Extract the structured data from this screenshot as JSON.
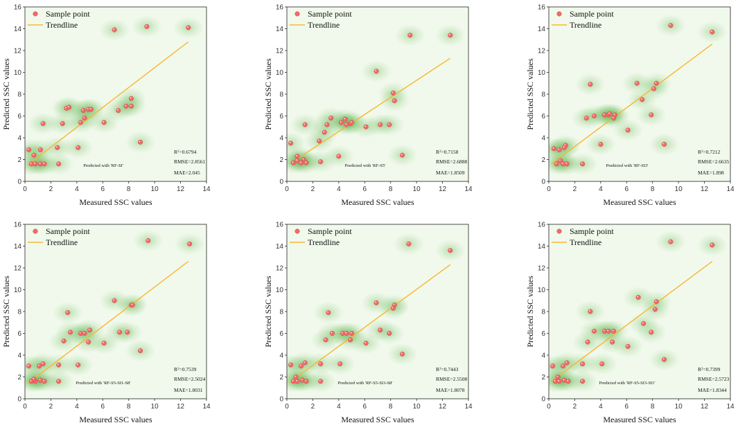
{
  "colors": {
    "point": "#f06a6a",
    "point_edge": "#d24a4a",
    "trend": "#f7b72e",
    "density": "#46a832"
  },
  "legend": {
    "point_label": "Sample point",
    "trend_label": "Trendline"
  },
  "chart_data": [
    {
      "type": "scatter",
      "xlabel": "Measured SSC values",
      "ylabel": "Predicted SSC values",
      "xlim": [
        0,
        14
      ],
      "ylim": [
        0,
        16
      ],
      "xticks": [
        "0",
        "2",
        "4",
        "6",
        "8",
        "10",
        "12",
        "14"
      ],
      "yticks": [
        "0",
        "2",
        "4",
        "6",
        "8",
        "10",
        "12",
        "14",
        "16"
      ],
      "stats": {
        "r2_label": "R",
        "r2_value": "=0.6794",
        "rmse": "RMSE=2.8561",
        "mae": "MAE=2.045"
      },
      "predicted_with": "Predicted with 'RF-SI'",
      "trend": [
        [
          0.2,
          1.5
        ],
        [
          12.6,
          12.8
        ]
      ],
      "points": [
        [
          0.3,
          2.9
        ],
        [
          0.5,
          1.6
        ],
        [
          0.8,
          1.6
        ],
        [
          1.2,
          2.9
        ],
        [
          1.2,
          1.6
        ],
        [
          1.4,
          5.3
        ],
        [
          1.5,
          1.6
        ],
        [
          0.7,
          2.4
        ],
        [
          2.5,
          3.1
        ],
        [
          2.6,
          1.6
        ],
        [
          2.9,
          5.3
        ],
        [
          3.2,
          6.7
        ],
        [
          3.4,
          6.8
        ],
        [
          4.1,
          3.1
        ],
        [
          4.3,
          5.4
        ],
        [
          4.5,
          6.5
        ],
        [
          4.6,
          5.8
        ],
        [
          4.9,
          6.6
        ],
        [
          5.1,
          6.6
        ],
        [
          6.1,
          5.4
        ],
        [
          7.2,
          6.5
        ],
        [
          7.8,
          6.9
        ],
        [
          8.2,
          6.9
        ],
        [
          8.2,
          7.6
        ],
        [
          8.9,
          3.6
        ],
        [
          6.9,
          13.9
        ],
        [
          9.4,
          14.2
        ],
        [
          12.6,
          14.1
        ]
      ]
    },
    {
      "type": "scatter",
      "xlabel": "Measured SSC values",
      "ylabel": "Predicted SSC values",
      "xlim": [
        0,
        14
      ],
      "ylim": [
        0,
        16
      ],
      "xticks": [
        "0",
        "2",
        "4",
        "6",
        "8",
        "10",
        "12",
        "14"
      ],
      "yticks": [
        "0",
        "2",
        "4",
        "6",
        "8",
        "10",
        "12",
        "14",
        "16"
      ],
      "stats": {
        "r2_label": "R",
        "r2_value": "=0.7158",
        "rmse": "RMSE=2.6888",
        "mae": "MAE=1.8509"
      },
      "predicted_with": "Predicted with 'RF-S5'",
      "trend": [
        [
          0.2,
          1.6
        ],
        [
          12.6,
          11.3
        ]
      ],
      "points": [
        [
          0.3,
          3.5
        ],
        [
          0.5,
          1.7
        ],
        [
          0.8,
          1.9
        ],
        [
          1.1,
          1.7
        ],
        [
          1.3,
          2.0
        ],
        [
          1.5,
          1.7
        ],
        [
          0.8,
          2.3
        ],
        [
          1.4,
          5.2
        ],
        [
          2.5,
          3.7
        ],
        [
          2.6,
          1.8
        ],
        [
          2.9,
          4.5
        ],
        [
          3.1,
          5.2
        ],
        [
          3.4,
          5.8
        ],
        [
          4.0,
          2.3
        ],
        [
          4.2,
          5.4
        ],
        [
          4.5,
          5.7
        ],
        [
          4.6,
          5.2
        ],
        [
          4.9,
          5.3
        ],
        [
          5.0,
          5.4
        ],
        [
          6.1,
          5.0
        ],
        [
          6.9,
          10.1
        ],
        [
          7.2,
          5.2
        ],
        [
          7.9,
          5.2
        ],
        [
          8.2,
          8.1
        ],
        [
          8.3,
          7.4
        ],
        [
          8.9,
          2.4
        ],
        [
          9.5,
          13.4
        ],
        [
          12.6,
          13.4
        ]
      ]
    },
    {
      "type": "scatter",
      "xlabel": "Measured SSC values",
      "ylabel": "Predicted SSC values",
      "xlim": [
        0,
        14
      ],
      "ylim": [
        0,
        16
      ],
      "xticks": [
        "0",
        "2",
        "4",
        "6",
        "8",
        "10",
        "12",
        "14"
      ],
      "yticks": [
        "0",
        "2",
        "4",
        "6",
        "8",
        "10",
        "12",
        "14",
        "16"
      ],
      "stats": {
        "r2_label": "R",
        "r2_value": "=0.7212",
        "rmse": "RMSE=2.6635",
        "mae": "MAE=1.898"
      },
      "predicted_with": "Predicted with 'RF-SI3'",
      "trend": [
        [
          0.2,
          1.6
        ],
        [
          12.6,
          12.6
        ]
      ],
      "points": [
        [
          0.4,
          3.0
        ],
        [
          0.6,
          1.6
        ],
        [
          0.9,
          1.9
        ],
        [
          1.1,
          1.6
        ],
        [
          1.4,
          1.6
        ],
        [
          0.8,
          2.9
        ],
        [
          1.3,
          3.3
        ],
        [
          1.2,
          3.1
        ],
        [
          2.6,
          1.6
        ],
        [
          2.9,
          5.8
        ],
        [
          3.2,
          8.9
        ],
        [
          3.5,
          6.0
        ],
        [
          4.0,
          3.4
        ],
        [
          4.3,
          6.1
        ],
        [
          4.6,
          6.1
        ],
        [
          4.7,
          6.2
        ],
        [
          5.0,
          5.8
        ],
        [
          5.1,
          6.1
        ],
        [
          6.1,
          4.7
        ],
        [
          6.8,
          9.0
        ],
        [
          7.2,
          7.5
        ],
        [
          7.9,
          6.1
        ],
        [
          8.1,
          8.5
        ],
        [
          8.3,
          9.0
        ],
        [
          8.9,
          3.4
        ],
        [
          9.4,
          14.3
        ],
        [
          12.6,
          13.7
        ]
      ]
    },
    {
      "type": "scatter",
      "xlabel": "Measured SSC values",
      "ylabel": "Predicted SSC values",
      "xlim": [
        0,
        14
      ],
      "ylim": [
        0,
        16
      ],
      "xticks": [
        "0",
        "2",
        "4",
        "6",
        "8",
        "10",
        "12",
        "14"
      ],
      "yticks": [
        "0",
        "2",
        "4",
        "6",
        "8",
        "10",
        "12",
        "14",
        "16"
      ],
      "stats": {
        "r2_label": "R",
        "r2_value": "=0.7539",
        "rmse": "RMSE=2.5024",
        "mae": "MAE=1.8031"
      },
      "predicted_with": "Predicted with 'RF-S5-SI1-S8'",
      "trend": [
        [
          0.2,
          1.4
        ],
        [
          12.6,
          12.6
        ]
      ],
      "points": [
        [
          0.3,
          3.0
        ],
        [
          0.5,
          1.6
        ],
        [
          0.8,
          1.6
        ],
        [
          1.1,
          3.0
        ],
        [
          1.2,
          1.7
        ],
        [
          1.4,
          3.2
        ],
        [
          0.7,
          1.8
        ],
        [
          1.5,
          1.6
        ],
        [
          2.6,
          3.1
        ],
        [
          2.6,
          1.6
        ],
        [
          3.0,
          5.3
        ],
        [
          3.3,
          7.9
        ],
        [
          3.5,
          6.1
        ],
        [
          4.1,
          3.1
        ],
        [
          4.3,
          6.0
        ],
        [
          4.6,
          6.0
        ],
        [
          4.9,
          5.2
        ],
        [
          5.0,
          6.3
        ],
        [
          6.1,
          5.1
        ],
        [
          6.9,
          9.0
        ],
        [
          7.3,
          6.1
        ],
        [
          7.9,
          6.1
        ],
        [
          8.2,
          8.6
        ],
        [
          8.3,
          8.6
        ],
        [
          8.9,
          4.4
        ],
        [
          9.5,
          14.5
        ],
        [
          12.7,
          14.2
        ]
      ]
    },
    {
      "type": "scatter",
      "xlabel": "Measured SSC values",
      "ylabel": "Predicted SSC values",
      "xlim": [
        0,
        14
      ],
      "ylim": [
        0,
        16
      ],
      "xticks": [
        "0",
        "2",
        "4",
        "6",
        "8",
        "10",
        "12",
        "14"
      ],
      "yticks": [
        "0",
        "2",
        "4",
        "6",
        "8",
        "10",
        "12",
        "14",
        "16"
      ],
      "stats": {
        "r2_label": "R",
        "r2_value": "=0.7443",
        "rmse": "RMSE=2.5508",
        "mae": "MAE=1.8078"
      },
      "predicted_with": "Predicted with 'RF-S5-SI3-S8'",
      "trend": [
        [
          0.2,
          1.5
        ],
        [
          12.6,
          12.3
        ]
      ],
      "points": [
        [
          0.3,
          3.1
        ],
        [
          0.5,
          1.6
        ],
        [
          0.8,
          1.6
        ],
        [
          1.1,
          3.0
        ],
        [
          1.2,
          1.7
        ],
        [
          1.4,
          3.3
        ],
        [
          1.5,
          1.6
        ],
        [
          0.7,
          2.0
        ],
        [
          2.6,
          3.2
        ],
        [
          2.6,
          1.6
        ],
        [
          3.0,
          5.4
        ],
        [
          3.2,
          7.9
        ],
        [
          3.5,
          6.0
        ],
        [
          4.1,
          3.2
        ],
        [
          4.3,
          6.0
        ],
        [
          4.6,
          6.0
        ],
        [
          4.9,
          5.4
        ],
        [
          5.0,
          6.0
        ],
        [
          6.1,
          5.1
        ],
        [
          6.9,
          8.8
        ],
        [
          7.2,
          6.3
        ],
        [
          7.9,
          6.0
        ],
        [
          8.2,
          8.3
        ],
        [
          8.3,
          8.6
        ],
        [
          8.9,
          4.1
        ],
        [
          9.4,
          14.2
        ],
        [
          12.6,
          13.6
        ]
      ]
    },
    {
      "type": "scatter",
      "xlabel": "Measured SSC values",
      "ylabel": "Predicted SSC values",
      "xlim": [
        0,
        14
      ],
      "ylim": [
        0,
        16
      ],
      "xticks": [
        "0",
        "2",
        "4",
        "6",
        "8",
        "10",
        "12",
        "14"
      ],
      "yticks": [
        "0",
        "2",
        "4",
        "6",
        "8",
        "10",
        "12",
        "14",
        "16"
      ],
      "stats": {
        "r2_label": "R",
        "r2_value": "=0.7399",
        "rmse": "RMSE=2.5723",
        "mae": "MAE=1.8344"
      },
      "predicted_with": "Predicted with 'RF-S5-SI3-SI1'",
      "trend": [
        [
          0.2,
          1.6
        ],
        [
          12.6,
          12.6
        ]
      ],
      "points": [
        [
          0.3,
          3.0
        ],
        [
          0.5,
          1.6
        ],
        [
          0.8,
          1.6
        ],
        [
          1.1,
          3.0
        ],
        [
          1.2,
          1.7
        ],
        [
          1.4,
          3.3
        ],
        [
          1.5,
          1.6
        ],
        [
          0.7,
          2.0
        ],
        [
          2.6,
          3.2
        ],
        [
          2.6,
          1.6
        ],
        [
          3.0,
          5.2
        ],
        [
          3.2,
          8.0
        ],
        [
          3.5,
          6.2
        ],
        [
          4.1,
          3.2
        ],
        [
          4.3,
          6.2
        ],
        [
          4.6,
          6.2
        ],
        [
          4.9,
          5.2
        ],
        [
          5.0,
          6.2
        ],
        [
          6.1,
          4.8
        ],
        [
          6.9,
          9.3
        ],
        [
          7.3,
          6.9
        ],
        [
          7.9,
          6.1
        ],
        [
          8.2,
          8.2
        ],
        [
          8.3,
          8.9
        ],
        [
          8.9,
          3.6
        ],
        [
          9.4,
          14.4
        ],
        [
          12.6,
          14.1
        ]
      ]
    }
  ]
}
